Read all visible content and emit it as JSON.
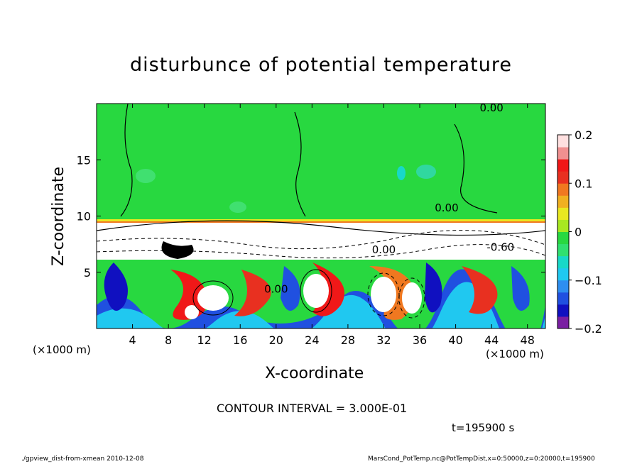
{
  "chart_data": {
    "type": "heatmap",
    "title": "disturbunce of potential temperature",
    "xlabel": "X-coordinate",
    "ylabel": "Z-coordinate",
    "x_unit_label": "(×1000 m)",
    "y_unit_label": "(×1000 m)",
    "x_ticks": [
      4,
      8,
      12,
      16,
      20,
      24,
      28,
      32,
      36,
      40,
      44,
      48
    ],
    "y_ticks": [
      5,
      10,
      15
    ],
    "xlim": [
      0,
      50
    ],
    "ylim": [
      0,
      20
    ],
    "colorbar": {
      "ticks": [
        0.2,
        0.1,
        0,
        -0.1,
        -0.2
      ],
      "tick_labels": [
        "0.2",
        "0.1",
        "0",
        "−0.1",
        "−0.2"
      ],
      "range": [
        -0.2,
        0.2
      ],
      "colors": [
        "#7a1fa2",
        "#1010c0",
        "#2050e0",
        "#2e8ef0",
        "#20c8f0",
        "#18d8c8",
        "#30e070",
        "#28d840",
        "#a8e820",
        "#e8e820",
        "#f0b020",
        "#f07820",
        "#e83020",
        "#f01818",
        "#f09090",
        "#ffe0e0"
      ]
    },
    "contour_labels": [
      "0.00",
      "0.00",
      "0.00",
      "-0.60",
      "0.00"
    ],
    "contour_interval_text": "CONTOUR INTERVAL = 3.000E-01",
    "time_text": "t=195900 s"
  },
  "footer": {
    "left": "./gpview_dist-from-xmean 2010-12-08",
    "right": "MarsCond_PotTemp.nc@PotTempDist,x=0:50000,z=0:20000,t=195900"
  }
}
